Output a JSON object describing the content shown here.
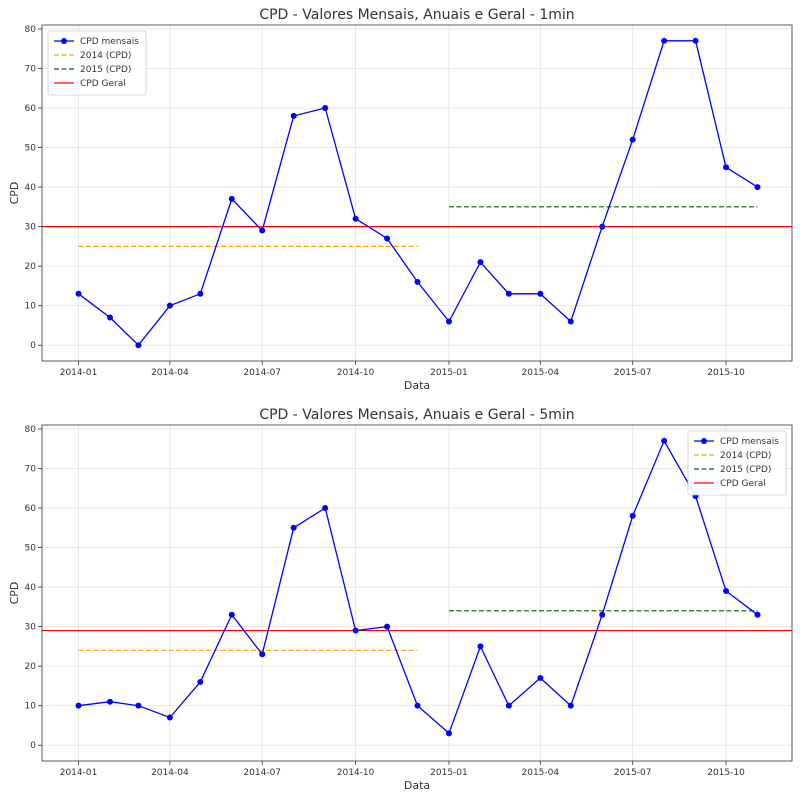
{
  "chart_data": [
    {
      "type": "line",
      "title": "CPD - Valores Mensais, Anuais e Geral - 1min",
      "xlabel": "Data",
      "ylabel": "CPD",
      "x": [
        "2014-01",
        "2014-02",
        "2014-03",
        "2014-04",
        "2014-05",
        "2014-06",
        "2014-07",
        "2014-08",
        "2014-09",
        "2014-10",
        "2014-11",
        "2014-12",
        "2015-01",
        "2015-02",
        "2015-03",
        "2015-04",
        "2015-05",
        "2015-06",
        "2015-07",
        "2015-08",
        "2015-09",
        "2015-10",
        "2015-11"
      ],
      "series": [
        {
          "name": "CPD mensais",
          "color": "#0000ff",
          "values": [
            13,
            7,
            0,
            10,
            13,
            37,
            29,
            58,
            60,
            32,
            27,
            16,
            6,
            21,
            13,
            13,
            6,
            30,
            52,
            77,
            77,
            45,
            40
          ]
        }
      ],
      "reference_lines": [
        {
          "name": "2014 (CPD)",
          "color": "#ffa500",
          "style": "dashed",
          "value": 25,
          "x_range": [
            "2014-01",
            "2014-12"
          ]
        },
        {
          "name": "2015 (CPD)",
          "color": "#006400",
          "style": "dashed",
          "value": 35,
          "x_range": [
            "2015-01",
            "2015-11"
          ]
        },
        {
          "name": "CPD Geral",
          "color": "#ff0000",
          "style": "solid",
          "value": 30
        }
      ],
      "x_ticks": [
        "2014-01",
        "2014-04",
        "2014-07",
        "2014-10",
        "2015-01",
        "2015-04",
        "2015-07",
        "2015-10"
      ],
      "y_ticks": [
        0,
        10,
        20,
        30,
        40,
        50,
        60,
        70,
        80
      ],
      "xlim": [
        "2013-11-26",
        "2015-12-05"
      ],
      "ylim": [
        -4,
        81
      ],
      "grid": true,
      "legend_position": "top-left"
    },
    {
      "type": "line",
      "title": "CPD - Valores Mensais, Anuais e Geral - 5min",
      "xlabel": "Data",
      "ylabel": "CPD",
      "x": [
        "2014-01",
        "2014-02",
        "2014-03",
        "2014-04",
        "2014-05",
        "2014-06",
        "2014-07",
        "2014-08",
        "2014-09",
        "2014-10",
        "2014-11",
        "2014-12",
        "2015-01",
        "2015-02",
        "2015-03",
        "2015-04",
        "2015-05",
        "2015-06",
        "2015-07",
        "2015-08",
        "2015-09",
        "2015-10",
        "2015-11"
      ],
      "series": [
        {
          "name": "CPD mensais",
          "color": "#0000ff",
          "values": [
            10,
            11,
            10,
            7,
            16,
            33,
            23,
            55,
            60,
            29,
            30,
            10,
            3,
            25,
            10,
            17,
            10,
            33,
            58,
            77,
            63,
            39,
            33
          ]
        }
      ],
      "reference_lines": [
        {
          "name": "2014 (CPD)",
          "color": "#ffa500",
          "style": "dashed",
          "value": 24,
          "x_range": [
            "2014-01",
            "2014-12"
          ]
        },
        {
          "name": "2015 (CPD)",
          "color": "#006400",
          "style": "dashed",
          "value": 34,
          "x_range": [
            "2015-01",
            "2015-11"
          ]
        },
        {
          "name": "CPD Geral",
          "color": "#ff0000",
          "style": "solid",
          "value": 29
        }
      ],
      "x_ticks": [
        "2014-01",
        "2014-04",
        "2014-07",
        "2014-10",
        "2015-01",
        "2015-04",
        "2015-07",
        "2015-10"
      ],
      "y_ticks": [
        0,
        10,
        20,
        30,
        40,
        50,
        60,
        70,
        80
      ],
      "xlim": [
        "2013-11-26",
        "2015-12-05"
      ],
      "ylim": [
        -4,
        81
      ],
      "grid": true,
      "legend_position": "top-right"
    }
  ]
}
